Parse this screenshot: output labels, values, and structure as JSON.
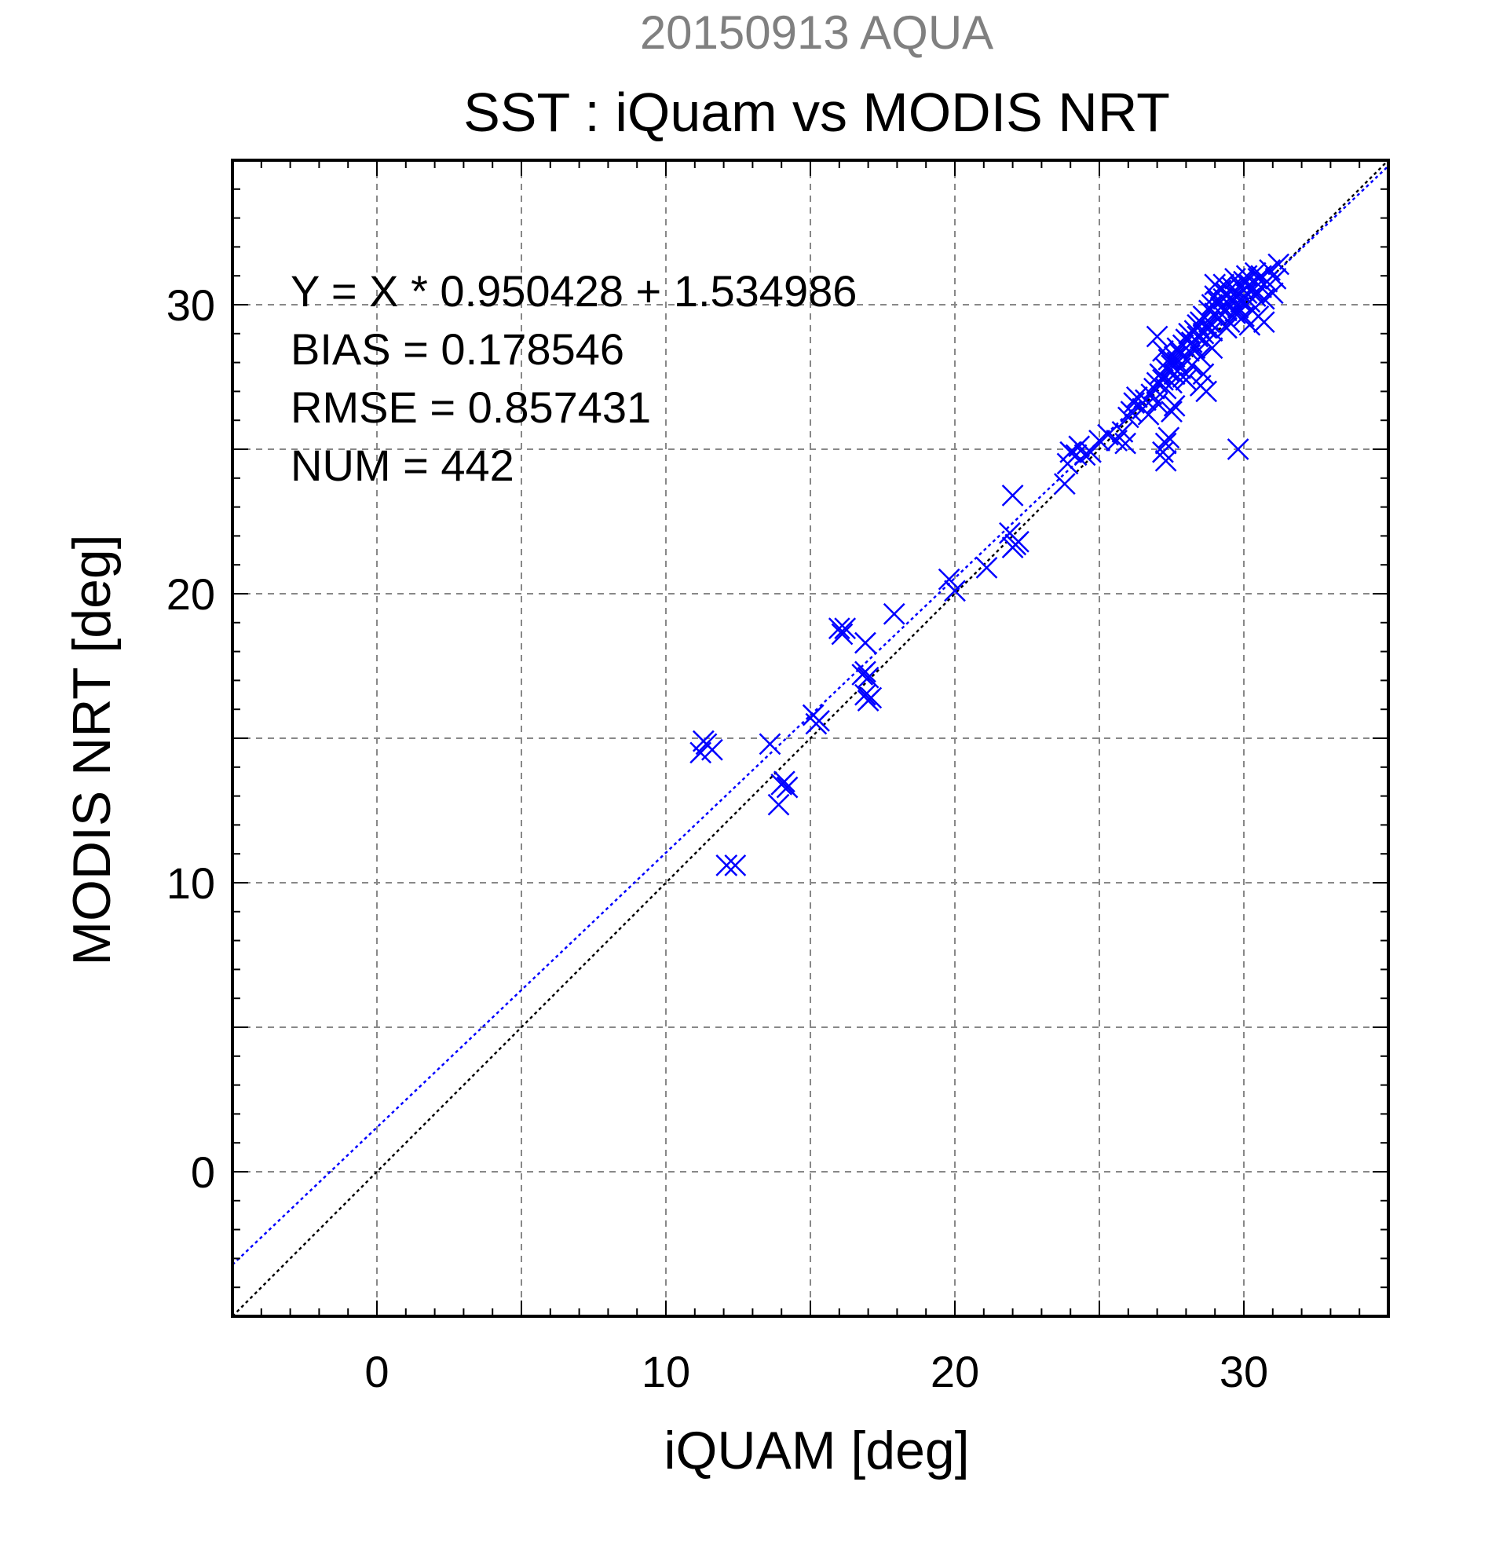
{
  "chart_data": {
    "type": "scatter",
    "supertitle": "20150913 AQUA",
    "title": "SST : iQuam vs MODIS NRT",
    "xlabel": "iQUAM [deg]",
    "ylabel": "MODIS NRT [deg]",
    "xlim": [
      -5,
      35
    ],
    "ylim": [
      -5,
      35
    ],
    "xticks": [
      0,
      10,
      20,
      30
    ],
    "yticks": [
      0,
      10,
      20,
      30
    ],
    "grid": true,
    "stats": {
      "equation": "Y = X * 0.950428 + 1.534986",
      "bias": "BIAS = 0.178546",
      "rmse": "RMSE = 0.857431",
      "num": "NUM = 442"
    },
    "regression": {
      "slope": 0.950428,
      "intercept": 1.534986
    },
    "colors": {
      "points": "#0000ff",
      "fit_line": "#0000ff",
      "one_to_one_line": "#000000",
      "grid": "#888888",
      "supertitle": "#808080"
    },
    "points": [
      [
        11.3,
        14.9
      ],
      [
        11.2,
        14.5
      ],
      [
        11.6,
        14.6
      ],
      [
        11.4,
        14.8
      ],
      [
        12.1,
        10.6
      ],
      [
        12.4,
        10.6
      ],
      [
        13.6,
        14.8
      ],
      [
        14.0,
        13.4
      ],
      [
        14.2,
        13.3
      ],
      [
        14.1,
        13.5
      ],
      [
        13.9,
        12.7
      ],
      [
        15.1,
        15.8
      ],
      [
        15.2,
        15.5
      ],
      [
        15.3,
        15.6
      ],
      [
        16.0,
        18.8
      ],
      [
        16.1,
        18.6
      ],
      [
        16.2,
        18.8
      ],
      [
        16.8,
        17.2
      ],
      [
        17.0,
        17.1
      ],
      [
        16.9,
        17.3
      ],
      [
        17.0,
        16.3
      ],
      [
        17.1,
        16.4
      ],
      [
        16.9,
        16.5
      ],
      [
        16.9,
        18.3
      ],
      [
        17.9,
        19.3
      ],
      [
        19.8,
        20.5
      ],
      [
        20.0,
        20.1
      ],
      [
        21.1,
        20.9
      ],
      [
        22.0,
        23.4
      ],
      [
        21.9,
        22.1
      ],
      [
        22.2,
        21.8
      ],
      [
        22.0,
        21.6
      ],
      [
        22.1,
        21.7
      ],
      [
        23.8,
        23.8
      ],
      [
        23.9,
        24.5
      ],
      [
        24.0,
        24.9
      ],
      [
        24.2,
        24.8
      ],
      [
        24.3,
        25.1
      ],
      [
        24.5,
        24.8
      ],
      [
        24.7,
        24.9
      ],
      [
        25.0,
        25.3
      ],
      [
        25.3,
        25.5
      ],
      [
        25.6,
        25.3
      ],
      [
        25.8,
        25.6
      ],
      [
        25.9,
        25.2
      ],
      [
        26.0,
        26.1
      ],
      [
        26.1,
        26.3
      ],
      [
        26.2,
        26.6
      ],
      [
        26.3,
        26.8
      ],
      [
        26.5,
        26.4
      ],
      [
        26.6,
        26.7
      ],
      [
        26.7,
        26.2
      ],
      [
        26.8,
        26.9
      ],
      [
        26.9,
        27.1
      ],
      [
        27.0,
        27.3
      ],
      [
        27.0,
        26.6
      ],
      [
        27.1,
        27.6
      ],
      [
        27.2,
        27.4
      ],
      [
        27.2,
        28.4
      ],
      [
        27.3,
        27.8
      ],
      [
        27.3,
        27.1
      ],
      [
        27.4,
        27.7
      ],
      [
        27.4,
        28.1
      ],
      [
        27.5,
        27.9
      ],
      [
        27.5,
        27.3
      ],
      [
        27.6,
        28.2
      ],
      [
        27.6,
        27.6
      ],
      [
        27.7,
        28.0
      ],
      [
        27.7,
        28.5
      ],
      [
        27.8,
        27.8
      ],
      [
        27.8,
        28.3
      ],
      [
        27.9,
        28.6
      ],
      [
        27.9,
        27.5
      ],
      [
        28.0,
        28.1
      ],
      [
        28.0,
        28.8
      ],
      [
        28.1,
        28.4
      ],
      [
        28.1,
        29.0
      ],
      [
        28.2,
        28.7
      ],
      [
        28.2,
        27.9
      ],
      [
        28.3,
        29.1
      ],
      [
        28.3,
        28.5
      ],
      [
        28.4,
        29.3
      ],
      [
        28.4,
        28.9
      ],
      [
        28.5,
        29.4
      ],
      [
        28.5,
        28.2
      ],
      [
        28.6,
        29.0
      ],
      [
        28.6,
        29.6
      ],
      [
        28.7,
        29.2
      ],
      [
        28.7,
        28.7
      ],
      [
        28.8,
        29.8
      ],
      [
        28.8,
        29.4
      ],
      [
        28.9,
        30.0
      ],
      [
        28.9,
        29.1
      ],
      [
        29.0,
        30.3
      ],
      [
        29.0,
        29.7
      ],
      [
        29.0,
        30.7
      ],
      [
        29.1,
        30.1
      ],
      [
        29.1,
        29.5
      ],
      [
        29.2,
        30.5
      ],
      [
        29.2,
        29.9
      ],
      [
        29.3,
        30.2
      ],
      [
        29.3,
        30.7
      ],
      [
        29.4,
        29.8
      ],
      [
        29.4,
        30.4
      ],
      [
        29.5,
        30.0
      ],
      [
        29.5,
        29.4
      ],
      [
        29.6,
        30.6
      ],
      [
        29.6,
        30.2
      ],
      [
        29.7,
        29.7
      ],
      [
        29.7,
        30.9
      ],
      [
        29.8,
        30.3
      ],
      [
        29.8,
        29.9
      ],
      [
        29.9,
        30.6
      ],
      [
        29.9,
        30.1
      ],
      [
        30.0,
        30.8
      ],
      [
        30.0,
        29.6
      ],
      [
        30.1,
        30.4
      ],
      [
        30.1,
        31.0
      ],
      [
        30.2,
        30.1
      ],
      [
        30.2,
        30.7
      ],
      [
        30.3,
        29.8
      ],
      [
        30.3,
        30.5
      ],
      [
        30.4,
        31.1
      ],
      [
        30.4,
        30.3
      ],
      [
        30.5,
        30.9
      ],
      [
        30.5,
        29.6
      ],
      [
        30.6,
        30.6
      ],
      [
        30.6,
        31.0
      ],
      [
        30.7,
        30.2
      ],
      [
        30.7,
        29.4
      ],
      [
        30.8,
        30.8
      ],
      [
        30.9,
        31.2
      ],
      [
        31.0,
        30.4
      ],
      [
        31.1,
        30.9
      ],
      [
        31.2,
        31.4
      ],
      [
        30.2,
        29.3
      ],
      [
        29.4,
        29.2
      ],
      [
        28.9,
        28.5
      ],
      [
        28.6,
        27.6
      ],
      [
        28.5,
        27.2
      ],
      [
        28.7,
        27.0
      ],
      [
        28.0,
        27.4
      ],
      [
        27.5,
        26.3
      ],
      [
        27.6,
        26.5
      ],
      [
        27.4,
        25.4
      ],
      [
        27.3,
        25.2
      ],
      [
        27.2,
        24.9
      ],
      [
        27.3,
        24.6
      ],
      [
        29.8,
        25.0
      ],
      [
        27.0,
        28.9
      ]
    ]
  }
}
